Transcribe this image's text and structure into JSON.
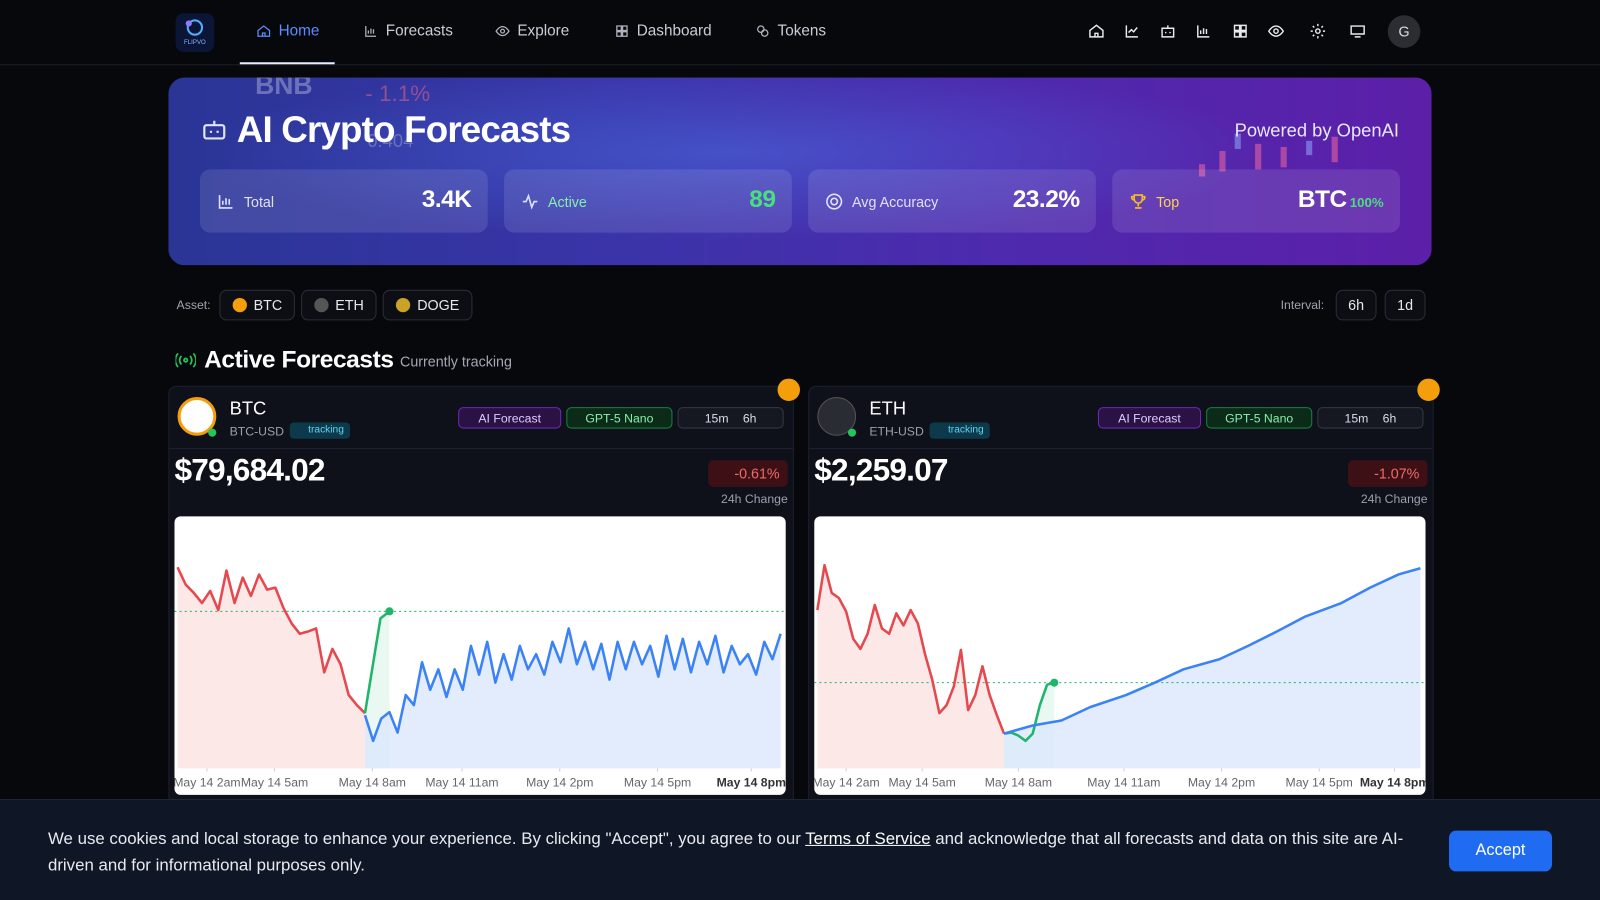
{
  "nav": {
    "logo_text": "FLIPVO",
    "items": [
      "Home",
      "Forecasts",
      "Explore",
      "Dashboard",
      "Tokens"
    ],
    "avatar": "G"
  },
  "hero": {
    "background_texts": [
      "BNB",
      "- 1.1%",
      "0.404"
    ],
    "title": "AI Crypto Forecasts",
    "powered": "Powered by OpenAI",
    "stats": [
      {
        "label": "Total",
        "value": "3.4K"
      },
      {
        "label": "Active",
        "value": "89"
      },
      {
        "label": "Avg Accuracy",
        "value": "23.2%"
      },
      {
        "label": "Top",
        "value": "BTC",
        "badge": "100%"
      }
    ]
  },
  "filters": {
    "asset_label": "Asset:",
    "assets": [
      "BTC",
      "ETH",
      "DOGE"
    ],
    "interval_label": "Interval:",
    "intervals": [
      "6h",
      "1d"
    ]
  },
  "section": {
    "title": "Active Forecasts",
    "subtitle": "Currently tracking"
  },
  "cards": [
    {
      "symbol": "BTC",
      "pair": "BTC-USD",
      "status": "tracking",
      "tags": [
        "AI Forecast",
        "GPT-5 Nano"
      ],
      "interval": "15m",
      "horizon": "6h",
      "price": "$79,684.02",
      "change": "-0.61%",
      "change_label": "24h Change",
      "chart": {
        "type": "line",
        "xlim": [
          0,
          74
        ],
        "ylim": [
          0,
          100
        ],
        "reference_line": 62.3,
        "xticks": [
          {
            "value": 3.6,
            "label": "May 14 2am"
          },
          {
            "value": 11.9,
            "label": "May 14 5am"
          },
          {
            "value": 23.9,
            "label": "May 14 8am"
          },
          {
            "value": 34.9,
            "label": "May 14 11am"
          },
          {
            "value": 46.9,
            "label": "May 14 2pm"
          },
          {
            "value": 58.9,
            "label": "May 14 5pm"
          },
          {
            "value": 70.4,
            "label": "May 14 8pm"
          }
        ],
        "series": [
          {
            "color": "#e5484d",
            "fill": "#fde2e2",
            "x": [
              0,
              1,
              2,
              3,
              4,
              5,
              6,
              7,
              8,
              9,
              10,
              11,
              12,
              13,
              14,
              15,
              16,
              17,
              18,
              19,
              20,
              21,
              22,
              23
            ],
            "values": [
              79.8,
              72.9,
              69.6,
              65.6,
              70.4,
              62.8,
              78.5,
              65.6,
              75.7,
              68.4,
              76.9,
              70.9,
              71.7,
              63.6,
              57.5,
              53.4,
              54.3,
              55.5,
              38.1,
              47.4,
              41.3,
              29.1,
              25.1,
              21.9
            ]
          },
          {
            "color": "#1fb56a",
            "fill": "#e3f6ec",
            "x": [
              23,
              24.9,
              26
            ],
            "values": [
              21.9,
              59.5,
              62.3
            ]
          },
          {
            "color": "#3b82f6",
            "fill": "#dbe7fc",
            "x": [
              23,
              24,
              25,
              26,
              27,
              28,
              29,
              30,
              31,
              32,
              33,
              34,
              35,
              36,
              37,
              38,
              39,
              40,
              41,
              42,
              43,
              44,
              45,
              46,
              47,
              48,
              49,
              50,
              51,
              52,
              53,
              54,
              55,
              56,
              57,
              58,
              59,
              60,
              61,
              62,
              63,
              64,
              65,
              66,
              67,
              68,
              69,
              70,
              71,
              72,
              73,
              74
            ],
            "values": [
              21.1,
              10.9,
              19.8,
              22.3,
              14.2,
              29.1,
              25.1,
              42.1,
              31.2,
              39.3,
              28.3,
              39.3,
              31.2,
              48.6,
              37.2,
              50.2,
              34.0,
              45.3,
              35.2,
              48.6,
              39.3,
              45.3,
              37.2,
              50.2,
              42.1,
              55.5,
              41.3,
              50.2,
              39.3,
              49.4,
              35.2,
              50.2,
              39.3,
              50.2,
              41.3,
              48.6,
              36.4,
              52.6,
              39.3,
              51.4,
              38.1,
              50.2,
              41.3,
              52.6,
              38.1,
              48.6,
              41.3,
              45.3,
              37.2,
              50.2,
              43.3,
              53.4
            ]
          }
        ]
      }
    },
    {
      "symbol": "ETH",
      "pair": "ETH-USD",
      "status": "tracking",
      "tags": [
        "AI Forecast",
        "GPT-5 Nano"
      ],
      "interval": "15m",
      "horizon": "6h",
      "price": "$2,259.07",
      "change": "-1.07%",
      "change_label": "24h Change",
      "chart": {
        "type": "line",
        "xlim": [
          0,
          84
        ],
        "ylim": [
          0,
          100
        ],
        "reference_line": 34.0,
        "xticks": [
          {
            "value": 4,
            "label": "May 14 2am"
          },
          {
            "value": 14.6,
            "label": "May 14 5am"
          },
          {
            "value": 28,
            "label": "May 14 8am"
          },
          {
            "value": 42.7,
            "label": "May 14 11am"
          },
          {
            "value": 56.3,
            "label": "May 14 2pm"
          },
          {
            "value": 69.9,
            "label": "May 14 5pm"
          },
          {
            "value": 80.4,
            "label": "May 14 8pm"
          }
        ],
        "series": [
          {
            "color": "#e5484d",
            "fill": "#fde2e2",
            "x": [
              0,
              1,
              2,
              3,
              4,
              5,
              6,
              7,
              8,
              9,
              10,
              11,
              12,
              13,
              14,
              15,
              16,
              17,
              18,
              19,
              20,
              21,
              22,
              23,
              24,
              25,
              26
            ],
            "values": [
              62.8,
              80.6,
              69.6,
              67.6,
              62.3,
              51.4,
              47.4,
              53.4,
              64.8,
              55.5,
              53.4,
              61.5,
              56.7,
              62.8,
              57.5,
              45.3,
              35.2,
              21.9,
              25.1,
              32.4,
              47.0,
              23.1,
              29.1,
              40.5,
              29.1,
              21.1,
              13.8
            ]
          },
          {
            "color": "#1fb56a",
            "fill": "#e3f6ec",
            "x": [
              26,
              27,
              28,
              29,
              30,
              31,
              32,
              33
            ],
            "values": [
              13.8,
              14.2,
              13.0,
              10.9,
              13.8,
              25.1,
              33.2,
              34.0
            ]
          },
          {
            "color": "#3b82f6",
            "fill": "#dbe7fc",
            "x": [
              26,
              30,
              34,
              38,
              43,
              47,
              51,
              56,
              60,
              64,
              68,
              73,
              77,
              81,
              84
            ],
            "values": [
              13.8,
              17.0,
              19.0,
              24.3,
              29.1,
              34.0,
              39.3,
              43.3,
              48.6,
              54.3,
              60.3,
              65.6,
              71.7,
              77.0,
              79.4
            ]
          }
        ]
      }
    }
  ],
  "cookie": {
    "text_before": "We use cookies and local storage to enhance your experience. By clicking \"Accept\", you agree to our ",
    "link": "Terms of Service",
    "text_after": " and acknowledge that all forecasts and data on this site are AI-driven and for informational purposes only.",
    "button": "Accept"
  }
}
